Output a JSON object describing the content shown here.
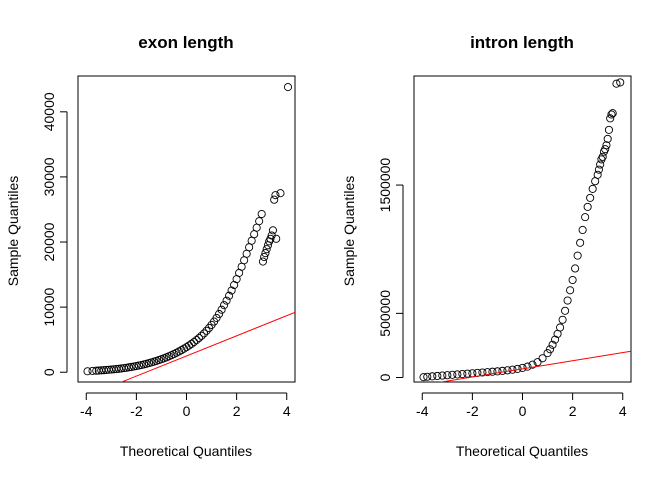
{
  "chart_data": [
    {
      "type": "scatter",
      "title": "exon length",
      "xlabel": "Theoretical Quantiles",
      "ylabel": "Sample Quantiles",
      "xlim": [
        -4.33,
        4.33
      ],
      "ylim": [
        -1500,
        45500
      ],
      "xticks": [
        -4,
        -2,
        0,
        2,
        4
      ],
      "yticks": [
        0,
        10000,
        20000,
        30000,
        40000
      ],
      "xtick_labels": [
        "-4",
        "-2",
        "0",
        "2",
        "4"
      ],
      "ytick_labels": [
        "0",
        "10000",
        "20000",
        "30000",
        "40000"
      ],
      "grid": false,
      "legend": "none",
      "reference_line": {
        "color": "#ff0000",
        "points": [
          [
            -4.33,
            -4200
          ],
          [
            4.33,
            9200
          ]
        ]
      },
      "x": [
        -3.95,
        -3.75,
        -3.6,
        -3.5,
        -3.4,
        -3.3,
        -3.2,
        -3.1,
        -3.0,
        -2.9,
        -2.8,
        -2.7,
        -2.6,
        -2.5,
        -2.4,
        -2.3,
        -2.2,
        -2.1,
        -2.0,
        -1.9,
        -1.8,
        -1.7,
        -1.6,
        -1.5,
        -1.4,
        -1.3,
        -1.2,
        -1.1,
        -1.0,
        -0.9,
        -0.8,
        -0.7,
        -0.6,
        -0.5,
        -0.4,
        -0.3,
        -0.2,
        -0.1,
        0.0,
        0.1,
        0.2,
        0.3,
        0.4,
        0.5,
        0.6,
        0.7,
        0.8,
        0.9,
        1.0,
        1.1,
        1.2,
        1.3,
        1.4,
        1.5,
        1.6,
        1.7,
        1.8,
        1.9,
        2.0,
        2.1,
        2.2,
        2.3,
        2.4,
        2.5,
        2.6,
        2.7,
        2.8,
        2.9,
        3.0,
        3.05,
        3.1,
        3.15,
        3.2,
        3.25,
        3.3,
        3.35,
        3.4,
        3.45,
        3.5,
        3.55,
        3.58,
        3.75,
        4.05
      ],
      "y": [
        150,
        200,
        230,
        260,
        290,
        320,
        350,
        380,
        410,
        450,
        490,
        530,
        580,
        630,
        690,
        750,
        810,
        880,
        950,
        1030,
        1110,
        1200,
        1300,
        1400,
        1510,
        1620,
        1740,
        1870,
        2000,
        2140,
        2290,
        2450,
        2620,
        2800,
        2990,
        3190,
        3400,
        3620,
        3850,
        4100,
        4360,
        4640,
        4940,
        5260,
        5600,
        5970,
        6370,
        6800,
        7270,
        7780,
        8340,
        8950,
        9600,
        10300,
        11000,
        11750,
        12550,
        13400,
        14300,
        15250,
        16200,
        17200,
        18200,
        19200,
        20200,
        21200,
        22200,
        23200,
        24300,
        17000,
        17700,
        18300,
        18900,
        19500,
        20100,
        20500,
        21000,
        21800,
        26500,
        27200,
        20500,
        27500,
        43800
      ]
    },
    {
      "type": "scatter",
      "title": "intron length",
      "xlabel": "Theoretical Quantiles",
      "ylabel": "Sample Quantiles",
      "xlim": [
        -4.33,
        4.33
      ],
      "ylim": [
        -35000,
        2350000
      ],
      "xticks": [
        -4,
        -2,
        0,
        2,
        4
      ],
      "yticks": [
        0,
        500000,
        1500000
      ],
      "xtick_labels": [
        "-4",
        "-2",
        "0",
        "2",
        "4"
      ],
      "ytick_labels": [
        "0",
        "500000",
        "1500000"
      ],
      "grid": false,
      "legend": "none",
      "reference_line": {
        "color": "#ff0000",
        "points": [
          [
            -4.33,
            -70000
          ],
          [
            4.33,
            205000
          ]
        ]
      },
      "x": [
        -3.95,
        -3.8,
        -3.6,
        -3.4,
        -3.2,
        -3.0,
        -2.8,
        -2.6,
        -2.4,
        -2.2,
        -2.0,
        -1.8,
        -1.6,
        -1.4,
        -1.2,
        -1.0,
        -0.8,
        -0.6,
        -0.4,
        -0.2,
        0.0,
        0.2,
        0.4,
        0.6,
        0.8,
        1.0,
        1.1,
        1.2,
        1.3,
        1.4,
        1.5,
        1.6,
        1.7,
        1.8,
        1.9,
        2.0,
        2.1,
        2.2,
        2.3,
        2.4,
        2.5,
        2.6,
        2.7,
        2.8,
        2.9,
        3.0,
        3.05,
        3.1,
        3.15,
        3.2,
        3.25,
        3.3,
        3.35,
        3.4,
        3.45,
        3.5,
        3.55,
        3.6,
        3.75,
        3.9
      ],
      "y": [
        3000,
        6000,
        9000,
        12000,
        15000,
        18000,
        21000,
        24000,
        27000,
        30000,
        33000,
        36000,
        39000,
        42000,
        45000,
        48000,
        52000,
        56000,
        61000,
        67000,
        75000,
        85000,
        100000,
        120000,
        150000,
        190000,
        220000,
        255000,
        295000,
        340000,
        390000,
        450000,
        520000,
        600000,
        680000,
        760000,
        850000,
        950000,
        1050000,
        1150000,
        1250000,
        1330000,
        1400000,
        1470000,
        1530000,
        1580000,
        1620000,
        1660000,
        1700000,
        1720000,
        1760000,
        1780000,
        1810000,
        1860000,
        1930000,
        2020000,
        2050000,
        2060000,
        2290000,
        2300000
      ]
    }
  ]
}
